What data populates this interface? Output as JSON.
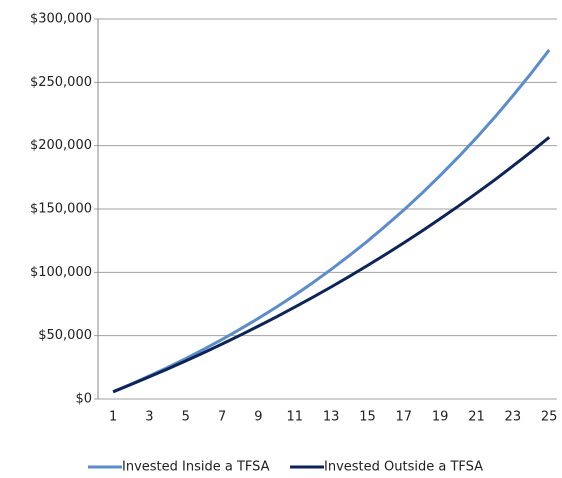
{
  "chart_data": {
    "type": "line",
    "categories": [
      1,
      null,
      3,
      null,
      5,
      null,
      7,
      null,
      9,
      null,
      11,
      null,
      13,
      null,
      15,
      null,
      17,
      null,
      19,
      null,
      21,
      null,
      23,
      null,
      25
    ],
    "series": [
      {
        "name": "Invested Inside a TFSA",
        "color": "#5b8ccb",
        "values": [
          5775,
          11834,
          18228,
          24890,
          31913,
          39282,
          47020,
          55151,
          63675,
          72638,
          82040,
          91926,
          102287,
          113178,
          124613,
          136625,
          149226,
          162462,
          176369,
          190956,
          206283,
          222372,
          239258,
          256999,
          275629
        ]
      },
      {
        "name": "Invested Outside a TFSA",
        "color": "#0c2458",
        "values": [
          5665,
          11500,
          17505,
          23689,
          30072,
          36643,
          43404,
          50373,
          57548,
          64929,
          72539,
          80395,
          88457,
          96785,
          105364,
          114183,
          123266,
          132632,
          142289,
          152222,
          162457,
          172994,
          183852,
          195040,
          206575
        ]
      }
    ],
    "ylim": [
      0,
      300000
    ],
    "yticks": [
      {
        "value": 0,
        "label": "$0"
      },
      {
        "value": 50000,
        "label": "$50,000"
      },
      {
        "value": 100000,
        "label": "$100,000"
      },
      {
        "value": 150000,
        "label": "$150,000"
      },
      {
        "value": 200000,
        "label": "$200,000"
      },
      {
        "value": 250000,
        "label": "$250,000"
      },
      {
        "value": 300000,
        "label": "$300,000"
      }
    ],
    "grid": true
  }
}
